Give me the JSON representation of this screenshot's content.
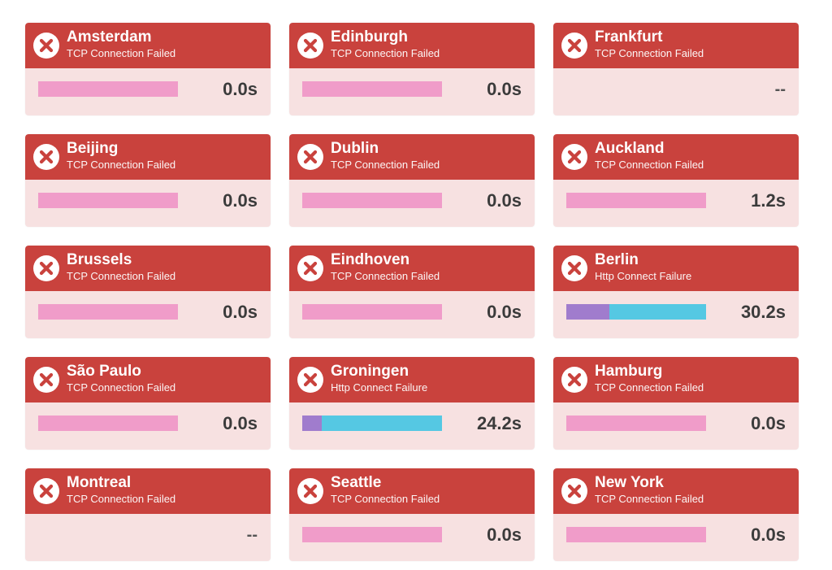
{
  "icon": "fail-x-icon",
  "colors": {
    "header": "#c9423d",
    "card_body": "#f7e1e1",
    "bar_tcp": "#f09cc9",
    "bar_connect": "#a07ccd",
    "bar_http": "#55c8e3",
    "time_text": "#3b3b3b"
  },
  "locations": [
    {
      "city": "Amsterdam",
      "status": "TCP Connection Failed",
      "time": "0.0s",
      "bar": "tcp"
    },
    {
      "city": "Edinburgh",
      "status": "TCP Connection Failed",
      "time": "0.0s",
      "bar": "tcp"
    },
    {
      "city": "Frankfurt",
      "status": "TCP Connection Failed",
      "time": "--",
      "bar": "none"
    },
    {
      "city": "Beijing",
      "status": "TCP Connection Failed",
      "time": "0.0s",
      "bar": "tcp"
    },
    {
      "city": "Dublin",
      "status": "TCP Connection Failed",
      "time": "0.0s",
      "bar": "tcp"
    },
    {
      "city": "Auckland",
      "status": "TCP Connection Failed",
      "time": "1.2s",
      "bar": "tcp"
    },
    {
      "city": "Brussels",
      "status": "TCP Connection Failed",
      "time": "0.0s",
      "bar": "tcp"
    },
    {
      "city": "Eindhoven",
      "status": "TCP Connection Failed",
      "time": "0.0s",
      "bar": "tcp"
    },
    {
      "city": "Berlin",
      "status": "Http Connect Failure",
      "time": "30.2s",
      "bar": "http",
      "connect_fraction": 0.31
    },
    {
      "city": "São Paulo",
      "status": "TCP Connection Failed",
      "time": "0.0s",
      "bar": "tcp"
    },
    {
      "city": "Groningen",
      "status": "Http Connect Failure",
      "time": "24.2s",
      "bar": "http",
      "connect_fraction": 0.14
    },
    {
      "city": "Hamburg",
      "status": "TCP Connection Failed",
      "time": "0.0s",
      "bar": "tcp"
    },
    {
      "city": "Montreal",
      "status": "TCP Connection Failed",
      "time": "--",
      "bar": "none"
    },
    {
      "city": "Seattle",
      "status": "TCP Connection Failed",
      "time": "0.0s",
      "bar": "tcp"
    },
    {
      "city": "New York",
      "status": "TCP Connection Failed",
      "time": "0.0s",
      "bar": "tcp"
    }
  ]
}
